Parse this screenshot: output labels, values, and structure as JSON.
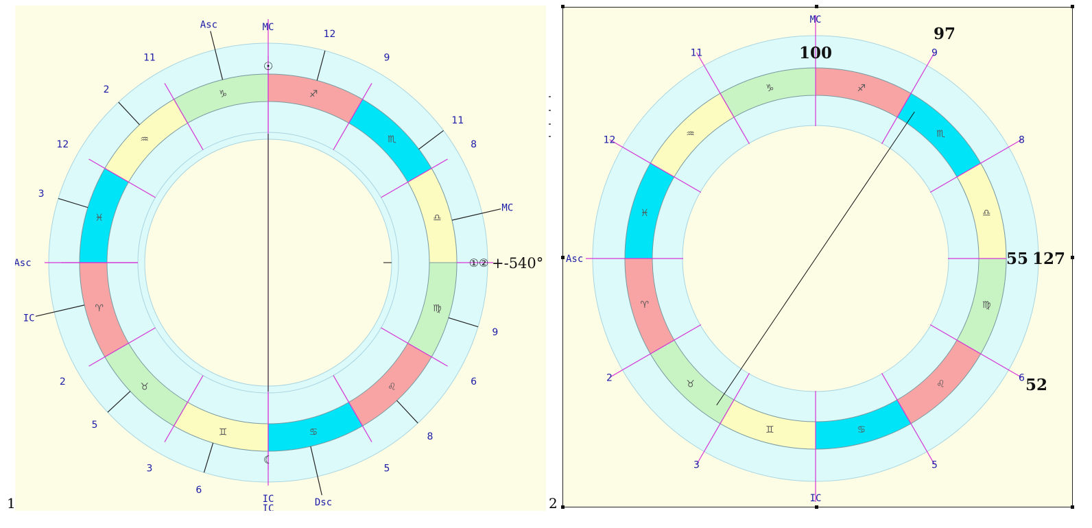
{
  "colors": {
    "background": "#fdfde6",
    "ring": "#dcfafa",
    "ring_border": "#a8d4e0",
    "fire": "#f8a4a4",
    "earth": "#c8f4c4",
    "air": "#fcfcc0",
    "water": "#00e4f8",
    "magenta": "#d633d6",
    "label_blue": "#1a1aa6",
    "dark": "#222222"
  },
  "zodiac": {
    "signs": [
      {
        "name": "aries",
        "glyph": "♈",
        "element": "fire"
      },
      {
        "name": "taurus",
        "glyph": "♉",
        "element": "earth"
      },
      {
        "name": "gemini",
        "glyph": "♊",
        "element": "air"
      },
      {
        "name": "cancer",
        "glyph": "♋",
        "element": "water"
      },
      {
        "name": "leo",
        "glyph": "♌",
        "element": "fire"
      },
      {
        "name": "virgo",
        "glyph": "♍",
        "element": "earth"
      },
      {
        "name": "libra",
        "glyph": "♎",
        "element": "air"
      },
      {
        "name": "scorpio",
        "glyph": "♏",
        "element": "water"
      },
      {
        "name": "sagittarius",
        "glyph": "♐",
        "element": "fire"
      },
      {
        "name": "capricorn",
        "glyph": "♑",
        "element": "earth"
      },
      {
        "name": "aquarius",
        "glyph": "♒",
        "element": "air"
      },
      {
        "name": "pisces",
        "glyph": "♓",
        "element": "water"
      }
    ]
  },
  "chart1": {
    "number": "1",
    "angle_labels": {
      "top": "MC",
      "bottom": "IC",
      "left": "Asc"
    },
    "outer_labels": [
      {
        "text": "Asc",
        "deg": 104
      },
      {
        "text": "12",
        "deg": 75
      },
      {
        "text": "9",
        "deg": 60
      },
      {
        "text": "11",
        "deg": 37
      },
      {
        "text": "8",
        "deg": 30
      },
      {
        "text": "MC",
        "deg": 13
      },
      {
        "text": "9",
        "deg": -17
      },
      {
        "text": "6",
        "deg": -30
      },
      {
        "text": "8",
        "deg": -47
      },
      {
        "text": "5",
        "deg": -60
      },
      {
        "text": "Dsc",
        "deg": -77
      },
      {
        "text": "IC",
        "deg": -90
      },
      {
        "text": "6",
        "deg": -107
      },
      {
        "text": "3",
        "deg": -120
      },
      {
        "text": "5",
        "deg": -137
      },
      {
        "text": "2",
        "deg": -150
      },
      {
        "text": "IC",
        "deg": -167
      },
      {
        "text": "Asc",
        "deg": 180
      },
      {
        "text": "3",
        "deg": 163
      },
      {
        "text": "12",
        "deg": 150
      },
      {
        "text": "2",
        "deg": 133
      },
      {
        "text": "11",
        "deg": 120
      }
    ],
    "sun_glyph": "☉",
    "moon_glyph": "☾",
    "planet_pair": "①②",
    "annotation": "+-540°"
  },
  "chart2": {
    "number": "2",
    "angle_labels": {
      "top": "MC",
      "bottom": "IC",
      "left": "Asc"
    },
    "outer_labels": [
      {
        "text": "9",
        "deg": 60
      },
      {
        "text": "8",
        "deg": 30
      },
      {
        "text": "6",
        "deg": -30
      },
      {
        "text": "5",
        "deg": -60
      },
      {
        "text": "3",
        "deg": -120
      },
      {
        "text": "2",
        "deg": -150
      },
      {
        "text": "12",
        "deg": 150
      },
      {
        "text": "11",
        "deg": 120
      }
    ],
    "values": {
      "top": "100",
      "top_right": "97",
      "right_inner": "55",
      "right_outer": "127",
      "lower_right": "52"
    }
  }
}
